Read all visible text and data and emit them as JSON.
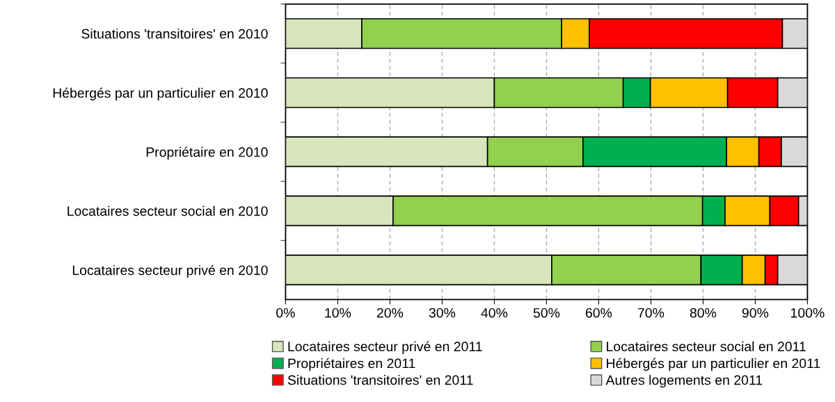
{
  "chart_data": {
    "type": "bar",
    "orientation": "horizontal",
    "stacked": true,
    "categories": [
      "Situations 'transitoires' en 2010",
      "Hébergés par un particulier en 2010",
      "Propriétaire en 2010",
      "Locataires secteur social en 2010",
      "Locataires secteur privé en 2010"
    ],
    "series": [
      {
        "name": "Locataires secteur privé en 2011",
        "color": "#d8e4bc",
        "values": [
          14.6,
          40.0,
          38.7,
          20.6,
          51.0
        ]
      },
      {
        "name": "Locataires secteur social en 2011",
        "color": "#92d050",
        "values": [
          38.3,
          24.7,
          18.3,
          59.3,
          28.6
        ]
      },
      {
        "name": "Propriétaires en 2011",
        "color": "#00b050",
        "values": [
          null,
          5.2,
          27.5,
          4.3,
          7.9
        ]
      },
      {
        "name": "Hébergés par un particulier en 2011",
        "color": "#ffc000",
        "values": [
          5.3,
          14.8,
          6.2,
          8.6,
          4.4
        ]
      },
      {
        "name": "Situations 'transitoires' en 2011",
        "color": "#ff0000",
        "values": [
          37.0,
          9.6,
          4.3,
          5.5,
          2.4
        ]
      },
      {
        "name": "Autres logements en 2011",
        "color": "#d9d9d9",
        "values": [
          4.8,
          5.7,
          5.0,
          1.7,
          5.7
        ]
      }
    ],
    "xlim": [
      0,
      100
    ],
    "xticks": [
      {
        "value": 0,
        "label": "0%"
      },
      {
        "value": 10,
        "label": "10%"
      },
      {
        "value": 20,
        "label": "20%"
      },
      {
        "value": 30,
        "label": "30%"
      },
      {
        "value": 40,
        "label": "40%"
      },
      {
        "value": 50,
        "label": "50%"
      },
      {
        "value": 60,
        "label": "60%"
      },
      {
        "value": 70,
        "label": "70%"
      },
      {
        "value": 80,
        "label": "80%"
      },
      {
        "value": 90,
        "label": "90%"
      },
      {
        "value": 100,
        "label": "100%"
      }
    ],
    "grid": "x",
    "legend": "bottom"
  }
}
